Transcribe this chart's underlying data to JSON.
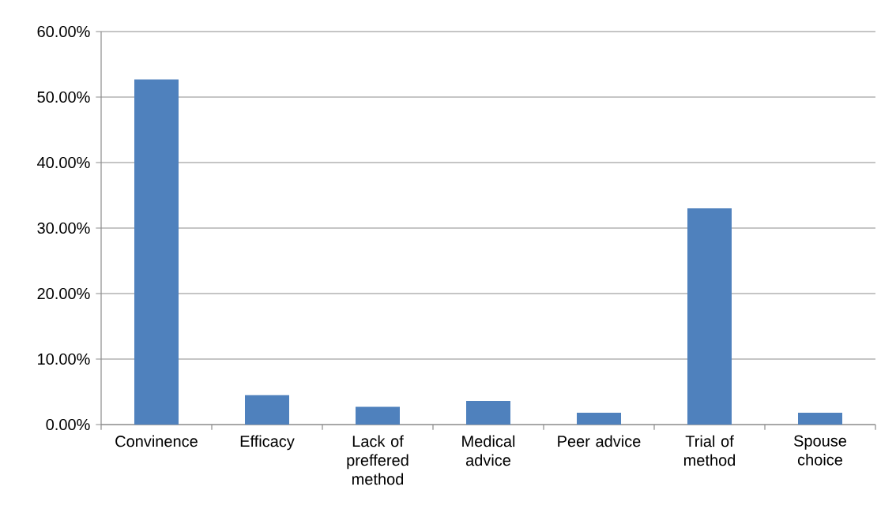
{
  "chart_data": {
    "type": "bar",
    "categories": [
      "Convinence",
      "Efficacy",
      "Lack of preffered method",
      "Medical advice",
      "Peer advice",
      "Trial of method",
      "Spouse choice"
    ],
    "values": [
      52.7,
      4.5,
      2.7,
      3.6,
      1.8,
      33.0,
      1.8
    ],
    "color": "#4f81bd",
    "ylim": [
      0,
      60
    ],
    "yticks": [
      {
        "value": 0,
        "label": "0.00%"
      },
      {
        "value": 10,
        "label": "10.00%"
      },
      {
        "value": 20,
        "label": "20.00%"
      },
      {
        "value": 30,
        "label": "30.00%"
      },
      {
        "value": 40,
        "label": "40.00%"
      },
      {
        "value": 50,
        "label": "50.00%"
      },
      {
        "value": 60,
        "label": "60.00%"
      }
    ],
    "grid": "y"
  }
}
